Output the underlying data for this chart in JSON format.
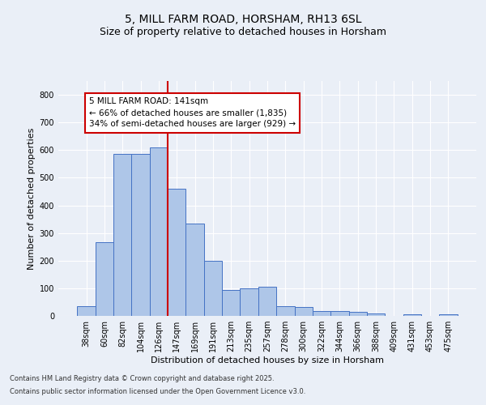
{
  "title1": "5, MILL FARM ROAD, HORSHAM, RH13 6SL",
  "title2": "Size of property relative to detached houses in Horsham",
  "xlabel": "Distribution of detached houses by size in Horsham",
  "ylabel": "Number of detached properties",
  "categories": [
    "38sqm",
    "60sqm",
    "82sqm",
    "104sqm",
    "126sqm",
    "147sqm",
    "169sqm",
    "191sqm",
    "213sqm",
    "235sqm",
    "257sqm",
    "278sqm",
    "300sqm",
    "322sqm",
    "344sqm",
    "366sqm",
    "388sqm",
    "409sqm",
    "431sqm",
    "453sqm",
    "475sqm"
  ],
  "values": [
    35,
    268,
    585,
    585,
    610,
    460,
    335,
    200,
    95,
    100,
    105,
    35,
    32,
    17,
    17,
    15,
    10,
    0,
    5,
    0,
    5
  ],
  "bar_color": "#aec6e8",
  "bar_edge_color": "#4472c4",
  "vline_index": 5,
  "annotation_text": "5 MILL FARM ROAD: 141sqm\n← 66% of detached houses are smaller (1,835)\n34% of semi-detached houses are larger (929) →",
  "annotation_box_color": "#ffffff",
  "annotation_box_edge_color": "#cc0000",
  "annotation_text_color": "#000000",
  "vline_color": "#cc0000",
  "footer1": "Contains HM Land Registry data © Crown copyright and database right 2025.",
  "footer2": "Contains public sector information licensed under the Open Government Licence v3.0.",
  "ylim": [
    0,
    850
  ],
  "yticks": [
    0,
    100,
    200,
    300,
    400,
    500,
    600,
    700,
    800
  ],
  "bg_color": "#eaeff7",
  "plot_bg_color": "#eaeff7",
  "grid_color": "#ffffff",
  "title1_fontsize": 10,
  "title2_fontsize": 9,
  "axis_fontsize": 8,
  "tick_fontsize": 7,
  "footer_fontsize": 6,
  "annot_fontsize": 7.5
}
